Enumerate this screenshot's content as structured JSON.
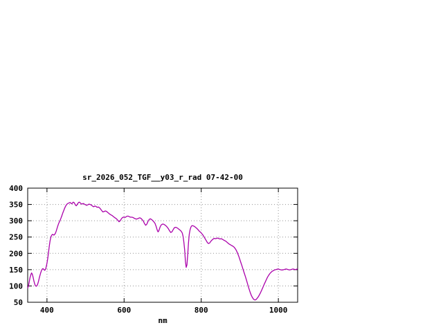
{
  "window": {
    "background_color": "#ffffff"
  },
  "chart_data": {
    "type": "line",
    "title": "sr_2026_052_TGF__y03_r_rad 07-42-00",
    "xlabel": "nm",
    "ylabel": "",
    "xlim": [
      350,
      1050
    ],
    "ylim": [
      50,
      400
    ],
    "xticks": [
      400,
      600,
      800,
      1000
    ],
    "yticks": [
      50,
      100,
      150,
      200,
      250,
      300,
      350,
      400
    ],
    "grid": true,
    "legend": "none",
    "line_color": "#aa00aa",
    "axis_color": "#000000",
    "grid_color": "#909090",
    "series": [
      {
        "points": [
          [
            350,
            93
          ],
          [
            352,
            100
          ],
          [
            354,
            112
          ],
          [
            356,
            125
          ],
          [
            358,
            134
          ],
          [
            360,
            140
          ],
          [
            362,
            136
          ],
          [
            364,
            127
          ],
          [
            366,
            116
          ],
          [
            368,
            107
          ],
          [
            370,
            101
          ],
          [
            372,
            99
          ],
          [
            374,
            101
          ],
          [
            376,
            106
          ],
          [
            378,
            114
          ],
          [
            380,
            124
          ],
          [
            382,
            133
          ],
          [
            384,
            141
          ],
          [
            386,
            148
          ],
          [
            388,
            152
          ],
          [
            390,
            153
          ],
          [
            392,
            150
          ],
          [
            394,
            148
          ],
          [
            396,
            150
          ],
          [
            398,
            158
          ],
          [
            400,
            170
          ],
          [
            402,
            185
          ],
          [
            404,
            203
          ],
          [
            406,
            222
          ],
          [
            408,
            238
          ],
          [
            410,
            249
          ],
          [
            412,
            255
          ],
          [
            414,
            258
          ],
          [
            416,
            257
          ],
          [
            418,
            256
          ],
          [
            420,
            258
          ],
          [
            422,
            262
          ],
          [
            424,
            268
          ],
          [
            426,
            276
          ],
          [
            428,
            284
          ],
          [
            430,
            291
          ],
          [
            432,
            296
          ],
          [
            434,
            301
          ],
          [
            436,
            307
          ],
          [
            438,
            313
          ],
          [
            440,
            320
          ],
          [
            442,
            327
          ],
          [
            444,
            333
          ],
          [
            446,
            339
          ],
          [
            448,
            344
          ],
          [
            450,
            348
          ],
          [
            452,
            351
          ],
          [
            454,
            353
          ],
          [
            456,
            354
          ],
          [
            458,
            355
          ],
          [
            460,
            356
          ],
          [
            462,
            354
          ],
          [
            464,
            352
          ],
          [
            466,
            354
          ],
          [
            468,
            357
          ],
          [
            470,
            356
          ],
          [
            472,
            352
          ],
          [
            474,
            348
          ],
          [
            476,
            346
          ],
          [
            478,
            349
          ],
          [
            480,
            353
          ],
          [
            482,
            356
          ],
          [
            484,
            357
          ],
          [
            486,
            355
          ],
          [
            488,
            353
          ],
          [
            490,
            351
          ],
          [
            492,
            352
          ],
          [
            494,
            353
          ],
          [
            496,
            352
          ],
          [
            498,
            350
          ],
          [
            500,
            349
          ],
          [
            503,
            347
          ],
          [
            506,
            349
          ],
          [
            509,
            351
          ],
          [
            512,
            350
          ],
          [
            515,
            348
          ],
          [
            518,
            345
          ],
          [
            521,
            343
          ],
          [
            524,
            345
          ],
          [
            527,
            344
          ],
          [
            530,
            341
          ],
          [
            533,
            342
          ],
          [
            536,
            340
          ],
          [
            539,
            336
          ],
          [
            542,
            331
          ],
          [
            545,
            327
          ],
          [
            548,
            328
          ],
          [
            551,
            330
          ],
          [
            554,
            329
          ],
          [
            557,
            326
          ],
          [
            560,
            323
          ],
          [
            563,
            320
          ],
          [
            566,
            318
          ],
          [
            569,
            316
          ],
          [
            572,
            313
          ],
          [
            575,
            310
          ],
          [
            578,
            308
          ],
          [
            581,
            305
          ],
          [
            584,
            301
          ],
          [
            587,
            297
          ],
          [
            590,
            300
          ],
          [
            593,
            306
          ],
          [
            596,
            310
          ],
          [
            599,
            311
          ],
          [
            602,
            310
          ],
          [
            605,
            312
          ],
          [
            608,
            314
          ],
          [
            611,
            314
          ],
          [
            614,
            312
          ],
          [
            617,
            311
          ],
          [
            620,
            311
          ],
          [
            623,
            310
          ],
          [
            626,
            308
          ],
          [
            629,
            306
          ],
          [
            632,
            305
          ],
          [
            635,
            306
          ],
          [
            638,
            308
          ],
          [
            641,
            309
          ],
          [
            644,
            307
          ],
          [
            647,
            303
          ],
          [
            650,
            299
          ],
          [
            653,
            291
          ],
          [
            656,
            286
          ],
          [
            659,
            290
          ],
          [
            662,
            298
          ],
          [
            665,
            304
          ],
          [
            668,
            306
          ],
          [
            671,
            304
          ],
          [
            674,
            301
          ],
          [
            677,
            297
          ],
          [
            680,
            292
          ],
          [
            683,
            283
          ],
          [
            686,
            271
          ],
          [
            688,
            266
          ],
          [
            690,
            269
          ],
          [
            692,
            276
          ],
          [
            694,
            283
          ],
          [
            697,
            288
          ],
          [
            700,
            290
          ],
          [
            703,
            289
          ],
          [
            706,
            287
          ],
          [
            709,
            284
          ],
          [
            712,
            280
          ],
          [
            715,
            275
          ],
          [
            718,
            269
          ],
          [
            721,
            264
          ],
          [
            724,
            266
          ],
          [
            727,
            272
          ],
          [
            730,
            278
          ],
          [
            733,
            280
          ],
          [
            736,
            279
          ],
          [
            739,
            277
          ],
          [
            742,
            274
          ],
          [
            745,
            271
          ],
          [
            748,
            268
          ],
          [
            751,
            262
          ],
          [
            753,
            252
          ],
          [
            755,
            235
          ],
          [
            757,
            210
          ],
          [
            759,
            175
          ],
          [
            761,
            157
          ],
          [
            763,
            165
          ],
          [
            765,
            196
          ],
          [
            767,
            232
          ],
          [
            769,
            258
          ],
          [
            771,
            272
          ],
          [
            773,
            280
          ],
          [
            775,
            284
          ],
          [
            777,
            285
          ],
          [
            780,
            284
          ],
          [
            783,
            282
          ],
          [
            786,
            279
          ],
          [
            789,
            276
          ],
          [
            792,
            272
          ],
          [
            795,
            268
          ],
          [
            798,
            265
          ],
          [
            801,
            261
          ],
          [
            804,
            257
          ],
          [
            807,
            251
          ],
          [
            810,
            245
          ],
          [
            813,
            239
          ],
          [
            816,
            233
          ],
          [
            819,
            230
          ],
          [
            822,
            232
          ],
          [
            825,
            237
          ],
          [
            828,
            241
          ],
          [
            831,
            244
          ],
          [
            834,
            246
          ],
          [
            837,
            245
          ],
          [
            840,
            246
          ],
          [
            843,
            247
          ],
          [
            846,
            245
          ],
          [
            849,
            244
          ],
          [
            852,
            245
          ],
          [
            855,
            243
          ],
          [
            858,
            241
          ],
          [
            861,
            239
          ],
          [
            864,
            237
          ],
          [
            867,
            234
          ],
          [
            870,
            231
          ],
          [
            873,
            228
          ],
          [
            876,
            226
          ],
          [
            879,
            224
          ],
          [
            882,
            222
          ],
          [
            885,
            219
          ],
          [
            888,
            215
          ],
          [
            891,
            209
          ],
          [
            894,
            201
          ],
          [
            897,
            192
          ],
          [
            900,
            182
          ],
          [
            903,
            171
          ],
          [
            906,
            160
          ],
          [
            909,
            149
          ],
          [
            912,
            138
          ],
          [
            915,
            127
          ],
          [
            918,
            115
          ],
          [
            921,
            103
          ],
          [
            924,
            91
          ],
          [
            927,
            80
          ],
          [
            930,
            71
          ],
          [
            933,
            64
          ],
          [
            936,
            59
          ],
          [
            939,
            57
          ],
          [
            942,
            58
          ],
          [
            945,
            62
          ],
          [
            948,
            67
          ],
          [
            951,
            73
          ],
          [
            954,
            80
          ],
          [
            957,
            88
          ],
          [
            960,
            96
          ],
          [
            963,
            104
          ],
          [
            966,
            112
          ],
          [
            969,
            120
          ],
          [
            972,
            127
          ],
          [
            975,
            133
          ],
          [
            978,
            138
          ],
          [
            981,
            142
          ],
          [
            984,
            145
          ],
          [
            987,
            147
          ],
          [
            990,
            149
          ],
          [
            993,
            150
          ],
          [
            996,
            151
          ],
          [
            999,
            152
          ],
          [
            1002,
            151
          ],
          [
            1005,
            150
          ],
          [
            1008,
            149
          ],
          [
            1011,
            149
          ],
          [
            1014,
            150
          ],
          [
            1017,
            151
          ],
          [
            1020,
            152
          ],
          [
            1023,
            151
          ],
          [
            1026,
            150
          ],
          [
            1029,
            149
          ],
          [
            1032,
            150
          ],
          [
            1035,
            151
          ],
          [
            1038,
            152
          ],
          [
            1041,
            151
          ],
          [
            1044,
            150
          ],
          [
            1047,
            151
          ],
          [
            1050,
            153
          ]
        ]
      }
    ]
  }
}
